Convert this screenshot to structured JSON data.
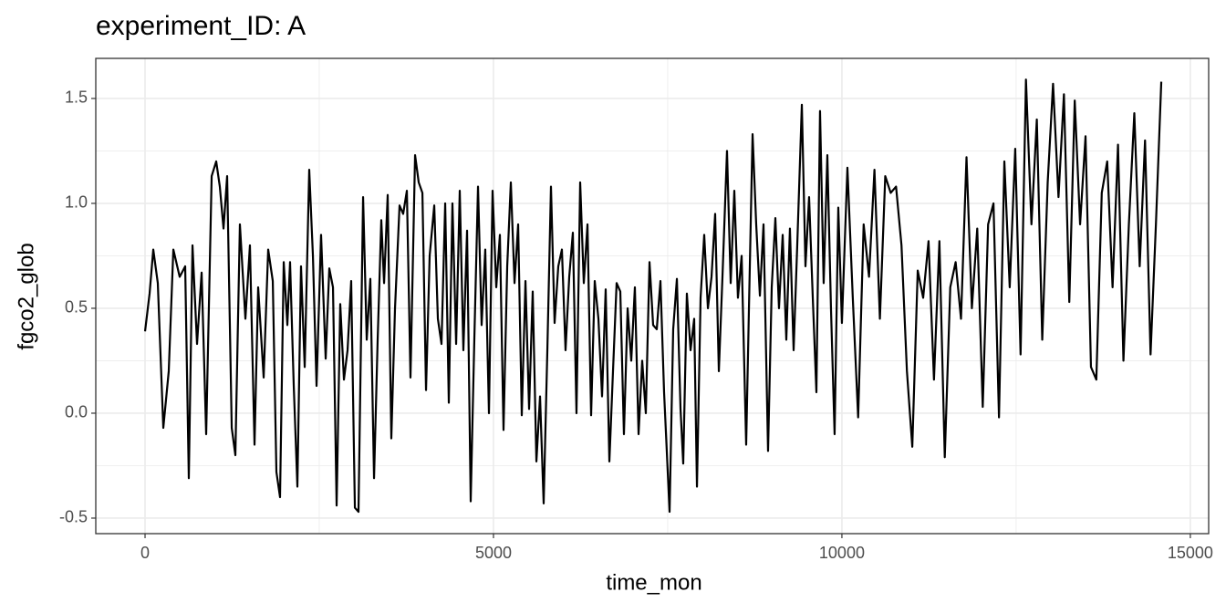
{
  "chart_data": {
    "type": "line",
    "title": "experiment_ID: A",
    "x_label": "time_mon",
    "y_label": "fgco2_glob",
    "color": "#000000",
    "grid": true,
    "xlim": [
      -707,
      15263
    ],
    "ylim": [
      -0.574,
      1.691
    ],
    "xticks": [
      0,
      5000,
      10000,
      15000
    ],
    "yticks": [
      -0.5,
      {
        "value": 0,
        "label": "0.0"
      },
      0.5,
      {
        "value": 1,
        "label": "1.0"
      },
      1.5
    ],
    "x": [
      0,
      65,
      118,
      183,
      262,
      340,
      406,
      497,
      576,
      628,
      681,
      746,
      812,
      877,
      956,
      1021,
      1073,
      1126,
      1178,
      1244,
      1296,
      1361,
      1440,
      1505,
      1571,
      1623,
      1702,
      1767,
      1833,
      1885,
      1937,
      1990,
      2042,
      2081,
      2134,
      2186,
      2238,
      2291,
      2356,
      2409,
      2461,
      2526,
      2592,
      2644,
      2697,
      2749,
      2801,
      2854,
      2906,
      2958,
      3011,
      3063,
      3129,
      3181,
      3233,
      3286,
      3338,
      3390,
      3430,
      3482,
      3534,
      3587,
      3652,
      3704,
      3757,
      3809,
      3875,
      3927,
      3980,
      4032,
      4084,
      4150,
      4202,
      4254,
      4307,
      4359,
      4411,
      4464,
      4516,
      4568,
      4621,
      4673,
      4725,
      4778,
      4830,
      4882,
      4935,
      4987,
      5040,
      5092,
      5144,
      5197,
      5249,
      5302,
      5354,
      5406,
      5459,
      5511,
      5563,
      5616,
      5668,
      5720,
      5773,
      5825,
      5877,
      5930,
      5982,
      6034,
      6087,
      6139,
      6191,
      6244,
      6296,
      6349,
      6401,
      6453,
      6506,
      6558,
      6610,
      6663,
      6715,
      6767,
      6820,
      6872,
      6925,
      6977,
      7029,
      7082,
      7134,
      7186,
      7239,
      7291,
      7343,
      7396,
      7448,
      7527,
      7579,
      7632,
      7684,
      7723,
      7775,
      7828,
      7880,
      7920,
      7972,
      8024,
      8077,
      8129,
      8181,
      8234,
      8286,
      8351,
      8404,
      8456,
      8508,
      8561,
      8626,
      8666,
      8718,
      8770,
      8823,
      8875,
      8940,
      8993,
      9045,
      9097,
      9150,
      9202,
      9254,
      9307,
      9359,
      9425,
      9477,
      9529,
      9582,
      9634,
      9686,
      9738,
      9791,
      9843,
      9895,
      9948,
      10000,
      10079,
      10156,
      10233,
      10312,
      10389,
      10467,
      10545,
      10622,
      10700,
      10777,
      10855,
      10933,
      11010,
      11088,
      11166,
      11243,
      11321,
      11399,
      11476,
      11555,
      11632,
      11709,
      11788,
      11865,
      11942,
      12021,
      12098,
      12175,
      12254,
      12331,
      12408,
      12487,
      12564,
      12641,
      12720,
      12797,
      12875,
      12953,
      13030,
      13108,
      13186,
      13263,
      13341,
      13418,
      13496,
      13574,
      13651,
      13729,
      13807,
      13884,
      13962,
      14040,
      14118,
      14196,
      14273,
      14350,
      14429,
      14506,
      14583
    ],
    "values": [
      0.39,
      0.57,
      0.78,
      0.62,
      -0.07,
      0.2,
      0.78,
      0.65,
      0.7,
      -0.31,
      0.8,
      0.33,
      0.67,
      -0.1,
      1.13,
      1.2,
      1.08,
      0.88,
      1.13,
      -0.07,
      -0.2,
      0.9,
      0.45,
      0.8,
      -0.15,
      0.6,
      0.17,
      0.78,
      0.63,
      -0.28,
      -0.4,
      0.72,
      0.42,
      0.72,
      0.13,
      -0.35,
      0.7,
      0.22,
      1.16,
      0.75,
      0.13,
      0.85,
      0.26,
      0.69,
      0.6,
      -0.44,
      0.52,
      0.16,
      0.3,
      0.63,
      -0.45,
      -0.47,
      1.03,
      0.35,
      0.64,
      -0.31,
      0.35,
      0.92,
      0.62,
      1.04,
      -0.12,
      0.5,
      0.99,
      0.95,
      1.06,
      0.17,
      1.23,
      1.1,
      1.05,
      0.11,
      0.75,
      0.99,
      0.45,
      0.33,
      1.0,
      0.05,
      1.0,
      0.33,
      1.06,
      0.3,
      0.87,
      -0.42,
      0.35,
      1.08,
      0.42,
      0.78,
      0.0,
      1.06,
      0.6,
      0.85,
      -0.08,
      0.7,
      1.1,
      0.62,
      0.9,
      -0.01,
      0.63,
      0.02,
      0.58,
      -0.23,
      0.08,
      -0.43,
      0.3,
      1.08,
      0.43,
      0.7,
      0.78,
      0.3,
      0.65,
      0.86,
      0.0,
      1.1,
      0.62,
      0.9,
      -0.01,
      0.63,
      0.45,
      0.08,
      0.59,
      -0.23,
      0.2,
      0.62,
      0.58,
      -0.1,
      0.5,
      0.25,
      0.6,
      -0.1,
      0.25,
      0.0,
      0.72,
      0.42,
      0.4,
      0.63,
      0.1,
      -0.47,
      0.4,
      0.64,
      0.02,
      -0.24,
      0.57,
      0.3,
      0.45,
      -0.35,
      0.55,
      0.85,
      0.5,
      0.65,
      0.95,
      0.2,
      0.65,
      1.25,
      0.62,
      1.06,
      0.55,
      0.75,
      -0.15,
      0.5,
      1.33,
      0.9,
      0.56,
      0.9,
      -0.18,
      0.6,
      0.93,
      0.5,
      0.85,
      0.35,
      0.88,
      0.3,
      0.8,
      1.47,
      0.7,
      1.03,
      0.55,
      0.1,
      1.44,
      0.62,
      1.23,
      0.5,
      -0.1,
      0.98,
      0.43,
      1.17,
      0.55,
      -0.02,
      0.9,
      0.65,
      1.16,
      0.45,
      1.13,
      1.05,
      1.08,
      0.8,
      0.2,
      -0.16,
      0.68,
      0.55,
      0.82,
      0.16,
      0.82,
      -0.21,
      0.6,
      0.72,
      0.45,
      1.22,
      0.5,
      0.88,
      0.03,
      0.9,
      1.0,
      -0.02,
      1.2,
      0.6,
      1.26,
      0.28,
      1.59,
      0.9,
      1.4,
      0.35,
      1.1,
      1.57,
      1.03,
      1.52,
      0.53,
      1.49,
      0.9,
      1.32,
      0.22,
      0.16,
      1.05,
      1.2,
      0.6,
      1.28,
      0.25,
      0.9,
      1.43,
      0.7,
      1.3,
      0.28,
      0.9,
      1.58
    ]
  }
}
